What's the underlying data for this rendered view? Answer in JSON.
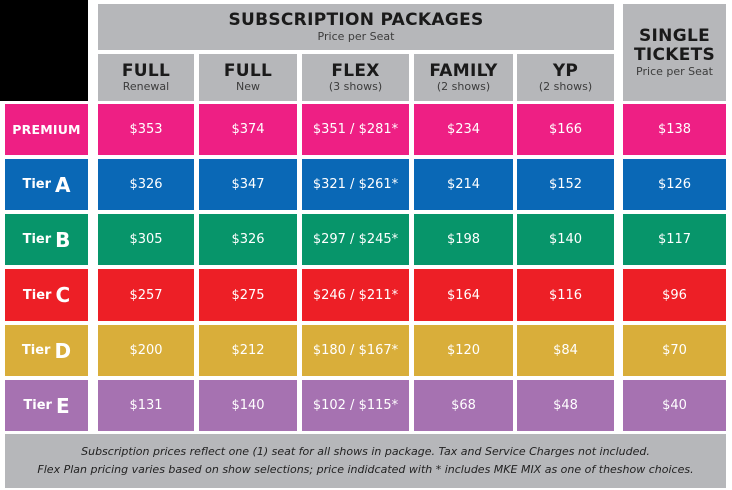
{
  "header": {
    "subscription_title": "SUBSCRIPTION PACKAGES",
    "subscription_subtitle": "Price per Seat",
    "single_title_line1": "SINGLE",
    "single_title_line2": "TICKETS",
    "single_subtitle": "Price per Seat"
  },
  "columns": [
    {
      "title": "FULL",
      "subtitle": "Renewal"
    },
    {
      "title": "FULL",
      "subtitle": "New"
    },
    {
      "title": "FLEX",
      "subtitle": "(3 shows)"
    },
    {
      "title": "FAMILY",
      "subtitle": "(2 shows)"
    },
    {
      "title": "YP",
      "subtitle": "(2 shows)"
    }
  ],
  "rows": [
    {
      "label": "PREMIUM",
      "tier": "",
      "letter": "",
      "color": "#ee1f84",
      "prices": [
        "$353",
        "$374",
        "$351 / $281*",
        "$234",
        "$166",
        "$138"
      ]
    },
    {
      "label": "",
      "tier": "Tier",
      "letter": "A",
      "color": "#0a68b6",
      "prices": [
        "$326",
        "$347",
        "$321 / $261*",
        "$214",
        "$152",
        "$126"
      ]
    },
    {
      "label": "",
      "tier": "Tier",
      "letter": "B",
      "color": "#07956a",
      "prices": [
        "$305",
        "$326",
        "$297 / $245*",
        "$198",
        "$140",
        "$117"
      ]
    },
    {
      "label": "",
      "tier": "Tier",
      "letter": "C",
      "color": "#ed1f26",
      "prices": [
        "$257",
        "$275",
        "$246 / $211*",
        "$164",
        "$116",
        "$96"
      ]
    },
    {
      "label": "",
      "tier": "Tier",
      "letter": "D",
      "color": "#d9ae3a",
      "prices": [
        "$200",
        "$212",
        "$180 / $167*",
        "$120",
        "$84",
        "$70"
      ]
    },
    {
      "label": "",
      "tier": "Tier",
      "letter": "E",
      "color": "#a672b1",
      "prices": [
        "$131",
        "$140",
        "$102 / $115*",
        "$68",
        "$48",
        "$40"
      ]
    }
  ],
  "footer": {
    "line1": "Subscription prices reflect one (1) seat for all shows in package.  Tax and Service Charges not included.",
    "line2": "Flex Plan pricing varies based on show selections; price indidcated with * includes MKE MIX as one of theshow choices."
  }
}
